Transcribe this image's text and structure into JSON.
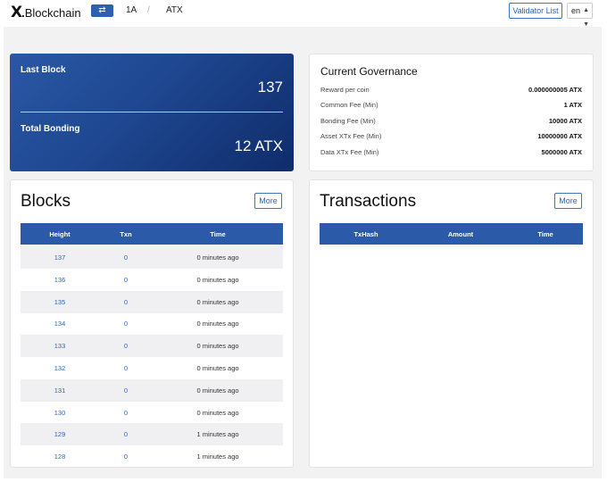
{
  "header": {
    "logo_mark": "X",
    "logo_text": "Blockchain",
    "swap_icon": "⇄",
    "chain_a": "1A",
    "chain_separator": "/",
    "chain_b": "ATX",
    "validator_button": "Validator List",
    "language": "en"
  },
  "stats": {
    "last_block_label": "Last Block",
    "last_block_value": "137",
    "total_bonding_label": "Total Bonding",
    "total_bonding_value": "12 ATX"
  },
  "governance": {
    "title": "Current Governance",
    "rows": [
      {
        "label": "Reward per coin",
        "value": "0.000000005 ATX"
      },
      {
        "label": "Common Fee (Min)",
        "value": "1 ATX"
      },
      {
        "label": "Bonding Fee (Min)",
        "value": "10000 ATX"
      },
      {
        "label": "Asset XTx Fee (Min)",
        "value": "10000000 ATX"
      },
      {
        "label": "Data XTx Fee (Min)",
        "value": "5000000 ATX"
      }
    ]
  },
  "blocks": {
    "title": "Blocks",
    "more_label": "More",
    "columns": [
      "Height",
      "Txn",
      "Time"
    ],
    "rows": [
      {
        "height": "137",
        "txn": "0",
        "time": "0 minutes ago"
      },
      {
        "height": "136",
        "txn": "0",
        "time": "0 minutes ago"
      },
      {
        "height": "135",
        "txn": "0",
        "time": "0 minutes ago"
      },
      {
        "height": "134",
        "txn": "0",
        "time": "0 minutes ago"
      },
      {
        "height": "133",
        "txn": "0",
        "time": "0 minutes ago"
      },
      {
        "height": "132",
        "txn": "0",
        "time": "0 minutes ago"
      },
      {
        "height": "131",
        "txn": "0",
        "time": "0 minutes ago"
      },
      {
        "height": "130",
        "txn": "0",
        "time": "0 minutes ago"
      },
      {
        "height": "129",
        "txn": "0",
        "time": "1 minutes ago"
      },
      {
        "height": "128",
        "txn": "0",
        "time": "1 minutes ago"
      }
    ]
  },
  "transactions": {
    "title": "Transactions",
    "more_label": "More",
    "columns": [
      "TxHash",
      "Amount",
      "Time"
    ],
    "rows": []
  },
  "colors": {
    "accent": "#2a5aa8",
    "link": "#2f66b3",
    "stats_gradient_start": "#2a57a5",
    "stats_gradient_end": "#0f2c6b"
  }
}
